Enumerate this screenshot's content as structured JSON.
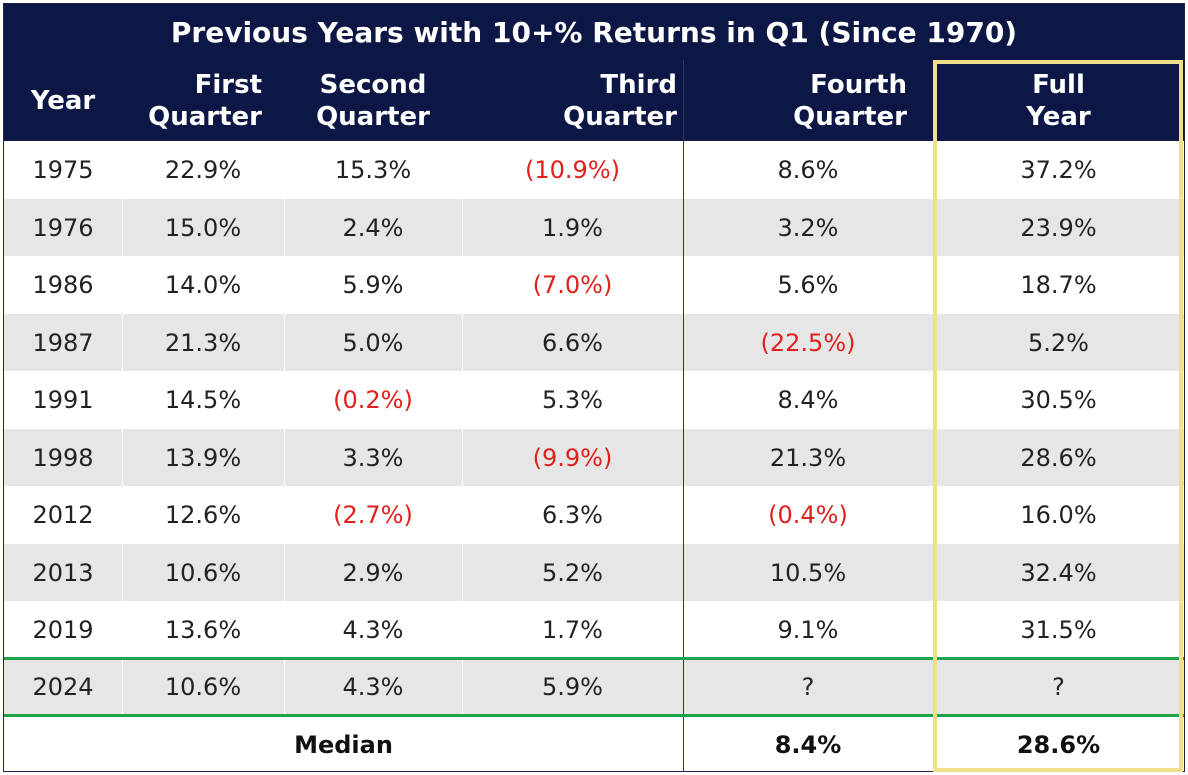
{
  "title": "Previous Years with 10+% Returns in Q1 (Since 1970)",
  "headers": {
    "year": "Year",
    "q1": "First\nQuarter",
    "q2": "Second\nQuarter",
    "q3": "Third\nQuarter",
    "q4": "Fourth\nQuarter",
    "full": "Full\nYear"
  },
  "rows": [
    {
      "year": "1975",
      "q1": "22.9%",
      "q2": "15.3%",
      "q3": "(10.9%)",
      "q4": "8.6%",
      "full": "37.2%"
    },
    {
      "year": "1976",
      "q1": "15.0%",
      "q2": "2.4%",
      "q3": "1.9%",
      "q4": "3.2%",
      "full": "23.9%"
    },
    {
      "year": "1986",
      "q1": "14.0%",
      "q2": "5.9%",
      "q3": "(7.0%)",
      "q4": "5.6%",
      "full": "18.7%"
    },
    {
      "year": "1987",
      "q1": "21.3%",
      "q2": "5.0%",
      "q3": "6.6%",
      "q4": "(22.5%)",
      "full": "5.2%"
    },
    {
      "year": "1991",
      "q1": "14.5%",
      "q2": "(0.2%)",
      "q3": "5.3%",
      "q4": "8.4%",
      "full": "30.5%"
    },
    {
      "year": "1998",
      "q1": "13.9%",
      "q2": "3.3%",
      "q3": "(9.9%)",
      "q4": "21.3%",
      "full": "28.6%"
    },
    {
      "year": "2012",
      "q1": "12.6%",
      "q2": "(2.7%)",
      "q3": "6.3%",
      "q4": "(0.4%)",
      "full": "16.0%"
    },
    {
      "year": "2013",
      "q1": "10.6%",
      "q2": "2.9%",
      "q3": "5.2%",
      "q4": "10.5%",
      "full": "32.4%"
    },
    {
      "year": "2019",
      "q1": "13.6%",
      "q2": "4.3%",
      "q3": "1.7%",
      "q4": "9.1%",
      "full": "31.5%"
    },
    {
      "year": "2024",
      "q1": "10.6%",
      "q2": "4.3%",
      "q3": "5.9%",
      "q4": "?",
      "full": "?"
    }
  ],
  "median": {
    "label": "Median",
    "q4": "8.4%",
    "full": "28.6%"
  },
  "colors": {
    "header_bg": "#0d1745",
    "negative": "#e0201a",
    "highlight": "#f1df8c",
    "current_year_border": "#1fa34a"
  }
}
